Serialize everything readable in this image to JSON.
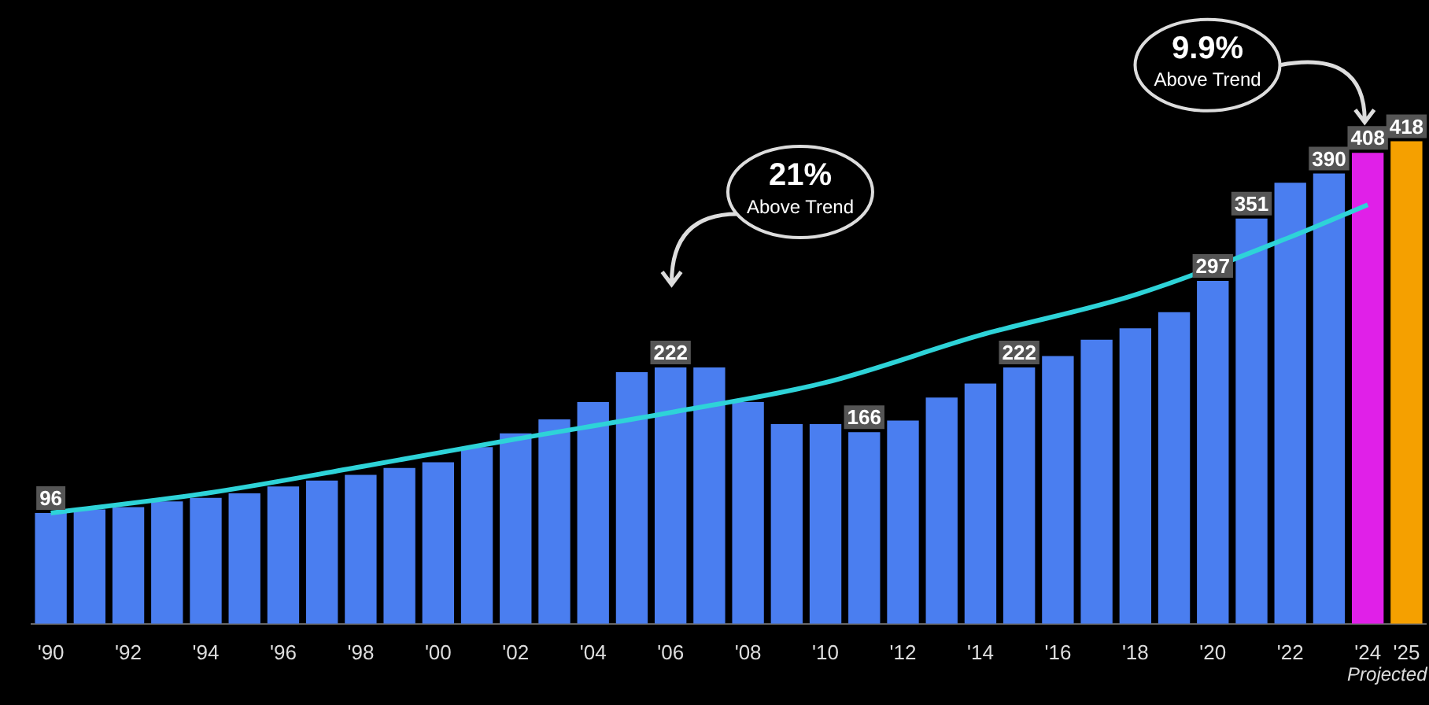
{
  "chart_data": {
    "type": "bar",
    "categories": [
      "'90",
      null,
      "'92",
      null,
      "'94",
      null,
      "'96",
      null,
      "'98",
      null,
      "'00",
      null,
      "'02",
      null,
      "'04",
      null,
      "'06",
      null,
      "'08",
      null,
      "'10",
      null,
      "'12",
      null,
      "'14",
      null,
      "'16",
      null,
      "'18",
      null,
      "'20",
      null,
      "'22",
      null,
      "'24",
      "'25"
    ],
    "values": [
      96,
      99,
      101,
      106,
      109,
      113,
      119,
      124,
      129,
      135,
      140,
      153,
      165,
      177,
      192,
      218,
      222,
      222,
      192,
      173,
      173,
      166,
      176,
      196,
      208,
      222,
      232,
      246,
      256,
      270,
      297,
      351,
      382,
      390,
      408,
      418
    ],
    "colors": [
      "#4a7ef0",
      "#4a7ef0",
      "#4a7ef0",
      "#4a7ef0",
      "#4a7ef0",
      "#4a7ef0",
      "#4a7ef0",
      "#4a7ef0",
      "#4a7ef0",
      "#4a7ef0",
      "#4a7ef0",
      "#4a7ef0",
      "#4a7ef0",
      "#4a7ef0",
      "#4a7ef0",
      "#4a7ef0",
      "#4a7ef0",
      "#4a7ef0",
      "#4a7ef0",
      "#4a7ef0",
      "#4a7ef0",
      "#4a7ef0",
      "#4a7ef0",
      "#4a7ef0",
      "#4a7ef0",
      "#4a7ef0",
      "#4a7ef0",
      "#4a7ef0",
      "#4a7ef0",
      "#4a7ef0",
      "#4a7ef0",
      "#4a7ef0",
      "#4a7ef0",
      "#4a7ef0",
      "#e020e8",
      "#f5a000"
    ],
    "value_labels": [
      "96",
      null,
      null,
      null,
      null,
      null,
      null,
      null,
      null,
      null,
      null,
      null,
      null,
      null,
      null,
      null,
      "222",
      null,
      null,
      null,
      null,
      "166",
      null,
      null,
      null,
      "222",
      null,
      null,
      null,
      null,
      "297",
      "351",
      null,
      "390",
      "408",
      "418"
    ],
    "series": [
      {
        "type": "line",
        "color": "#2ed3d8",
        "x": [
          "'90",
          "'94",
          "'98",
          "'02",
          "'06",
          "'10",
          "'14",
          "'18",
          "'22",
          "'24"
        ],
        "values": [
          96,
          113,
          136,
          160,
          183,
          209,
          250,
          285,
          335,
          363
        ]
      }
    ],
    "annotations": [
      "21%\nAbove Trend",
      "9.9%\nAbove Trend",
      "Projected"
    ],
    "legend": false
  }
}
